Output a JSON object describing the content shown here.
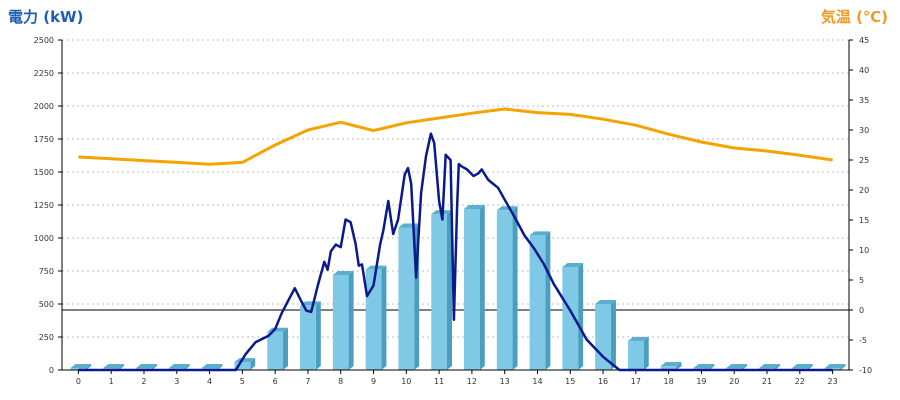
{
  "chart_data": {
    "type": "bar",
    "title": "",
    "xlabel": "",
    "left_axis_label": "電力 (kW)",
    "right_axis_label": "気温 (℃)",
    "x_categories": [
      "0",
      "1",
      "2",
      "3",
      "4",
      "5",
      "6",
      "7",
      "8",
      "9",
      "10",
      "11",
      "12",
      "13",
      "14",
      "15",
      "16",
      "17",
      "18",
      "19",
      "20",
      "21",
      "22",
      "23"
    ],
    "left_axis": {
      "min": 0,
      "max": 2500,
      "ticks": [
        "2500",
        "2250",
        "2000",
        "1750",
        "1500",
        "1250",
        "1000",
        "750",
        "500",
        "250",
        "0"
      ]
    },
    "right_axis": {
      "min": -10,
      "max": 45,
      "ticks": [
        "45",
        "40",
        "35",
        "30",
        "25",
        "20",
        "15",
        "10",
        "5",
        "0",
        "-5",
        "-10"
      ]
    },
    "grid": true,
    "colors": {
      "bars": "#7fc8e6",
      "bars_dark": "#4a9ec0",
      "power_line": "#0a1a8c",
      "temperature_line": "#f5a300",
      "left_label": "#1f5fb3",
      "right_label": "#f29a24"
    },
    "bars": {
      "name": "",
      "values": [
        15,
        15,
        15,
        15,
        15,
        60,
        290,
        490,
        720,
        760,
        1080,
        1180,
        1220,
        1210,
        1020,
        780,
        500,
        220,
        30,
        15,
        15,
        15,
        15,
        15
      ]
    },
    "temperature": {
      "name": "",
      "x": [
        0,
        1,
        2,
        3,
        4,
        5,
        6,
        7,
        8,
        9,
        10,
        11,
        12,
        13,
        14,
        15,
        16,
        17,
        18,
        19,
        20,
        21,
        22,
        23
      ],
      "values": [
        25.5,
        25.2,
        24.9,
        24.6,
        24.3,
        24.6,
        27.5,
        30.0,
        31.3,
        29.9,
        31.2,
        32.0,
        32.8,
        33.5,
        32.9,
        32.6,
        31.8,
        30.8,
        29.3,
        28.0,
        27.0,
        26.5,
        25.8,
        25.0
      ]
    },
    "power": {
      "name": "",
      "x": [
        0,
        4.8,
        5.1,
        5.4,
        5.8,
        6.0,
        6.2,
        6.45,
        6.6,
        6.8,
        6.95,
        7.1,
        7.3,
        7.5,
        7.6,
        7.7,
        7.85,
        8.0,
        8.15,
        8.3,
        8.45,
        8.55,
        8.65,
        8.8,
        9.0,
        9.2,
        9.3,
        9.45,
        9.6,
        9.75,
        9.95,
        10.05,
        10.15,
        10.3,
        10.45,
        10.6,
        10.75,
        10.85,
        11.0,
        11.1,
        11.2,
        11.35,
        11.45,
        11.55,
        11.6,
        11.7,
        11.85,
        12.05,
        12.2,
        12.3,
        12.5,
        12.6,
        12.8,
        13.0,
        13.3,
        13.6,
        13.9,
        14.2,
        14.5,
        15.0,
        15.5,
        16.0,
        16.5,
        17.0,
        17.5,
        18.0,
        23.0
      ],
      "values": [
        0,
        0,
        120,
        210,
        260,
        310,
        430,
        550,
        620,
        520,
        450,
        440,
        640,
        820,
        760,
        900,
        950,
        930,
        1140,
        1120,
        960,
        790,
        800,
        560,
        640,
        950,
        1060,
        1280,
        1030,
        1140,
        1480,
        1530,
        1410,
        700,
        1340,
        1620,
        1790,
        1720,
        1280,
        1140,
        1630,
        1590,
        380,
        1240,
        1560,
        1540,
        1520,
        1470,
        1490,
        1520,
        1440,
        1420,
        1380,
        1290,
        1160,
        1020,
        920,
        800,
        650,
        450,
        230,
        100,
        0,
        0,
        0,
        0,
        0
      ]
    }
  }
}
